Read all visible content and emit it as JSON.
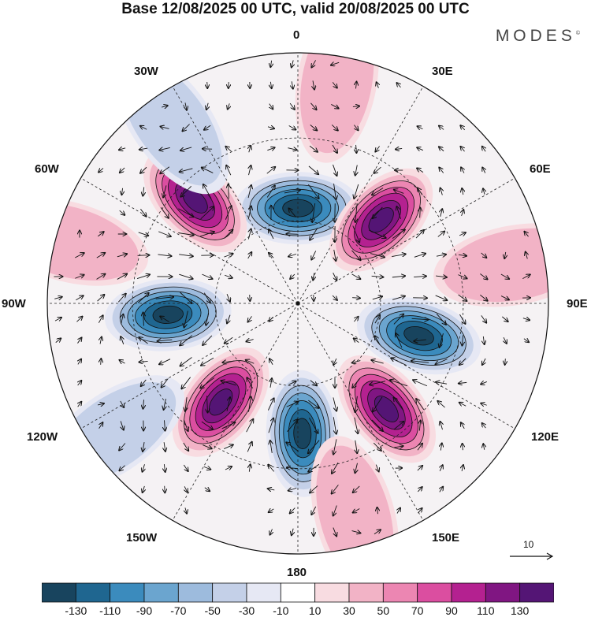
{
  "title": "Base 12/08/2025 00 UTC, valid 20/08/2025 00 UTC",
  "brand": "MODES",
  "brand_mark": "©",
  "longitude_labels": {
    "lon_0": "0",
    "lon_30e": "30E",
    "lon_60e": "60E",
    "lon_90e": "90E",
    "lon_120e": "120E",
    "lon_150e": "150E",
    "lon_180": "180",
    "lon_150w": "150W",
    "lon_120w": "120W",
    "lon_90w": "90W",
    "lon_60w": "60W",
    "lon_30w": "30W"
  },
  "reference_vector": "10",
  "colorbar": {
    "labels": [
      "-130",
      "-110",
      "-90",
      "-70",
      "-50",
      "-30",
      "-10",
      "10",
      "30",
      "50",
      "70",
      "90",
      "110",
      "130"
    ],
    "colors": [
      "#18445e",
      "#1f6690",
      "#3b8bbd",
      "#6ba5cf",
      "#9dbbdd",
      "#c4d0e8",
      "#e6e8f4",
      "#ffffff",
      "#f8dce1",
      "#f2b3c6",
      "#ec86b2",
      "#db4ea0",
      "#b42190",
      "#801682",
      "#541575"
    ]
  },
  "anomaly_centers": [
    {
      "name": "center-0",
      "lon": 0,
      "dist": 0.38,
      "sign": "negative",
      "strength": 1.0
    },
    {
      "name": "center-45e",
      "lon": 45,
      "dist": 0.47,
      "sign": "positive",
      "strength": 1.0
    },
    {
      "name": "center-105e",
      "lon": 105,
      "dist": 0.5,
      "sign": "negative",
      "strength": 1.0
    },
    {
      "name": "center-140e",
      "lon": 140,
      "dist": 0.55,
      "sign": "positive",
      "strength": 1.0
    },
    {
      "name": "center-180",
      "lon": 178,
      "dist": 0.52,
      "sign": "negative",
      "strength": 1.0
    },
    {
      "name": "center-140w",
      "lon": -142,
      "dist": 0.5,
      "sign": "positive",
      "strength": 1.0
    },
    {
      "name": "center-95w",
      "lon": -95,
      "dist": 0.52,
      "sign": "negative",
      "strength": 1.0
    },
    {
      "name": "center-45w",
      "lon": -45,
      "dist": 0.58,
      "sign": "positive",
      "strength": 1.0
    },
    {
      "name": "center-10e-outer",
      "lon": 10,
      "dist": 0.9,
      "sign": "positive",
      "strength": 0.3
    },
    {
      "name": "center-35w-outer",
      "lon": -35,
      "dist": 0.88,
      "sign": "negative",
      "strength": 0.3
    },
    {
      "name": "center-80e-outer",
      "lon": 80,
      "dist": 0.88,
      "sign": "positive",
      "strength": 0.25
    },
    {
      "name": "center-165e-outer",
      "lon": 165,
      "dist": 0.88,
      "sign": "positive",
      "strength": 0.35
    },
    {
      "name": "center-125w-outer",
      "lon": -125,
      "dist": 0.9,
      "sign": "negative",
      "strength": 0.3
    },
    {
      "name": "center-75w-outer",
      "lon": -75,
      "dist": 0.95,
      "sign": "positive",
      "strength": 0.3
    }
  ]
}
